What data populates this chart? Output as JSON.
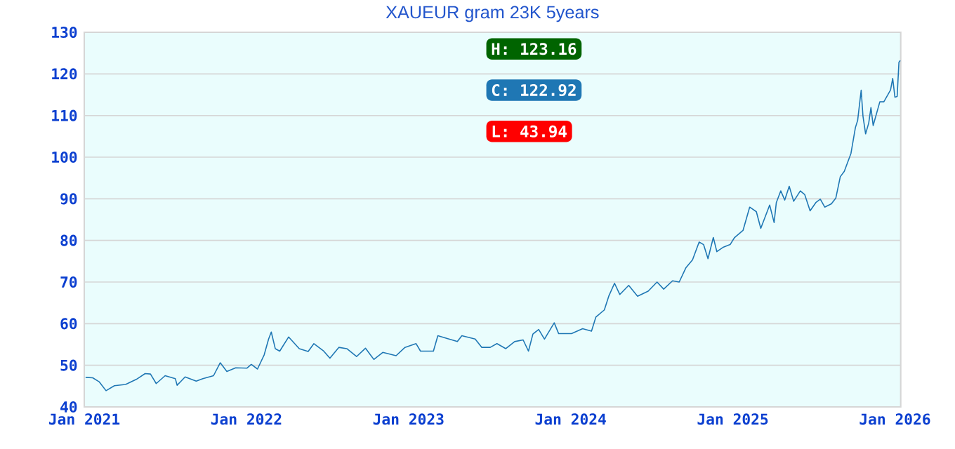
{
  "chart_data": {
    "type": "line",
    "title": "XAUEUR gram 23K 5years",
    "x": [
      "2021-01-04",
      "2021-01-20",
      "2021-02-04",
      "2021-02-19",
      "2021-03-10",
      "2021-04-04",
      "2021-04-28",
      "2021-05-18",
      "2021-05-30",
      "2021-06-12",
      "2021-07-02",
      "2021-07-25",
      "2021-07-29",
      "2021-08-16",
      "2021-09-10",
      "2021-09-25",
      "2021-10-19",
      "2021-11-03",
      "2021-11-18",
      "2021-12-08",
      "2022-01-02",
      "2022-01-12",
      "2022-01-26",
      "2022-02-10",
      "2022-02-20",
      "2022-02-26",
      "2022-03-07",
      "2022-03-17",
      "2022-04-06",
      "2022-04-30",
      "2022-05-20",
      "2022-06-02",
      "2022-06-24",
      "2022-07-08",
      "2022-07-28",
      "2022-08-15",
      "2022-09-06",
      "2022-09-26",
      "2022-10-15",
      "2022-11-04",
      "2022-12-04",
      "2022-12-24",
      "2023-01-18",
      "2023-01-28",
      "2023-02-26",
      "2023-03-08",
      "2023-04-02",
      "2023-04-21",
      "2023-05-01",
      "2023-05-31",
      "2023-06-15",
      "2023-07-04",
      "2023-07-19",
      "2023-08-08",
      "2023-08-28",
      "2023-09-16",
      "2023-09-28",
      "2023-10-08",
      "2023-10-21",
      "2023-11-03",
      "2023-11-25",
      "2023-12-05",
      "2024-01-03",
      "2024-01-28",
      "2024-02-17",
      "2024-02-27",
      "2024-03-17",
      "2024-03-27",
      "2024-04-09",
      "2024-04-21",
      "2024-05-11",
      "2024-05-31",
      "2024-06-24",
      "2024-07-14",
      "2024-07-29",
      "2024-08-18",
      "2024-09-02",
      "2024-09-17",
      "2024-10-02",
      "2024-10-17",
      "2024-10-27",
      "2024-11-06",
      "2024-11-18",
      "2024-11-26",
      "2024-12-11",
      "2024-12-26",
      "2025-01-05",
      "2025-01-24",
      "2025-02-08",
      "2025-02-23",
      "2025-03-05",
      "2025-03-25",
      "2025-04-04",
      "2025-04-09",
      "2025-04-19",
      "2025-04-28",
      "2025-05-08",
      "2025-05-18",
      "2025-06-02",
      "2025-06-12",
      "2025-06-24",
      "2025-07-07",
      "2025-07-17",
      "2025-07-27",
      "2025-08-11",
      "2025-08-21",
      "2025-08-31",
      "2025-09-09",
      "2025-09-24",
      "2025-10-04",
      "2025-10-09",
      "2025-10-17",
      "2025-10-21",
      "2025-10-27",
      "2025-11-03",
      "2025-11-08",
      "2025-11-13",
      "2025-11-28",
      "2025-12-07",
      "2025-12-22",
      "2025-12-27",
      "2026-01-01",
      "2026-01-06",
      "2026-01-10",
      "2026-01-13"
    ],
    "values": [
      47.1,
      47.0,
      46.0,
      43.9,
      45.1,
      45.4,
      46.6,
      48.0,
      47.9,
      45.6,
      47.5,
      46.8,
      45.2,
      47.2,
      46.2,
      46.8,
      47.5,
      50.6,
      48.5,
      49.4,
      49.3,
      50.2,
      49.1,
      52.5,
      56.3,
      58.0,
      54.0,
      53.4,
      56.8,
      54.0,
      53.3,
      55.2,
      53.4,
      51.7,
      54.3,
      54.0,
      52.1,
      54.1,
      51.4,
      53.1,
      52.3,
      54.3,
      55.2,
      53.4,
      53.4,
      57.1,
      56.3,
      55.7,
      57.1,
      56.3,
      54.3,
      54.3,
      55.2,
      54.0,
      55.7,
      56.1,
      53.4,
      57.5,
      58.6,
      56.3,
      60.2,
      57.6,
      57.6,
      58.8,
      58.2,
      61.6,
      63.3,
      66.6,
      69.7,
      67.0,
      69.2,
      66.6,
      67.8,
      70.0,
      68.3,
      70.3,
      70.0,
      73.4,
      75.3,
      79.6,
      79.0,
      75.6,
      80.7,
      77.3,
      78.4,
      79.0,
      80.7,
      82.4,
      88.0,
      86.9,
      82.9,
      88.5,
      84.3,
      89.1,
      91.9,
      89.7,
      93.0,
      89.4,
      91.9,
      91.0,
      87.1,
      89.1,
      89.9,
      88.0,
      88.8,
      90.2,
      95.3,
      96.6,
      100.9,
      107.1,
      108.8,
      116.1,
      109.9,
      105.6,
      108.2,
      111.9,
      107.6,
      113.3,
      113.3,
      116.1,
      118.9,
      114.4,
      114.6,
      122.8,
      123.2
    ],
    "color": "#1f77b4",
    "xlim": [
      "2021-01-01",
      "2026-01-14"
    ],
    "xticks": [
      {
        "value": "2021-01-01",
        "label": "Jan 2021"
      },
      {
        "value": "2022-01-01",
        "label": "Jan 2022"
      },
      {
        "value": "2023-01-01",
        "label": "Jan 2023"
      },
      {
        "value": "2024-01-01",
        "label": "Jan 2024"
      },
      {
        "value": "2025-01-01",
        "label": "Jan 2025"
      },
      {
        "value": "2026-01-01",
        "label": "Jan 2026"
      }
    ],
    "ylim": [
      40,
      130
    ],
    "yticks": [
      40,
      50,
      60,
      70,
      80,
      90,
      100,
      110,
      120,
      130
    ],
    "grid": "y",
    "annotations": [
      "H: 123.16",
      "C: 122.92",
      "L: 43.94"
    ]
  }
}
